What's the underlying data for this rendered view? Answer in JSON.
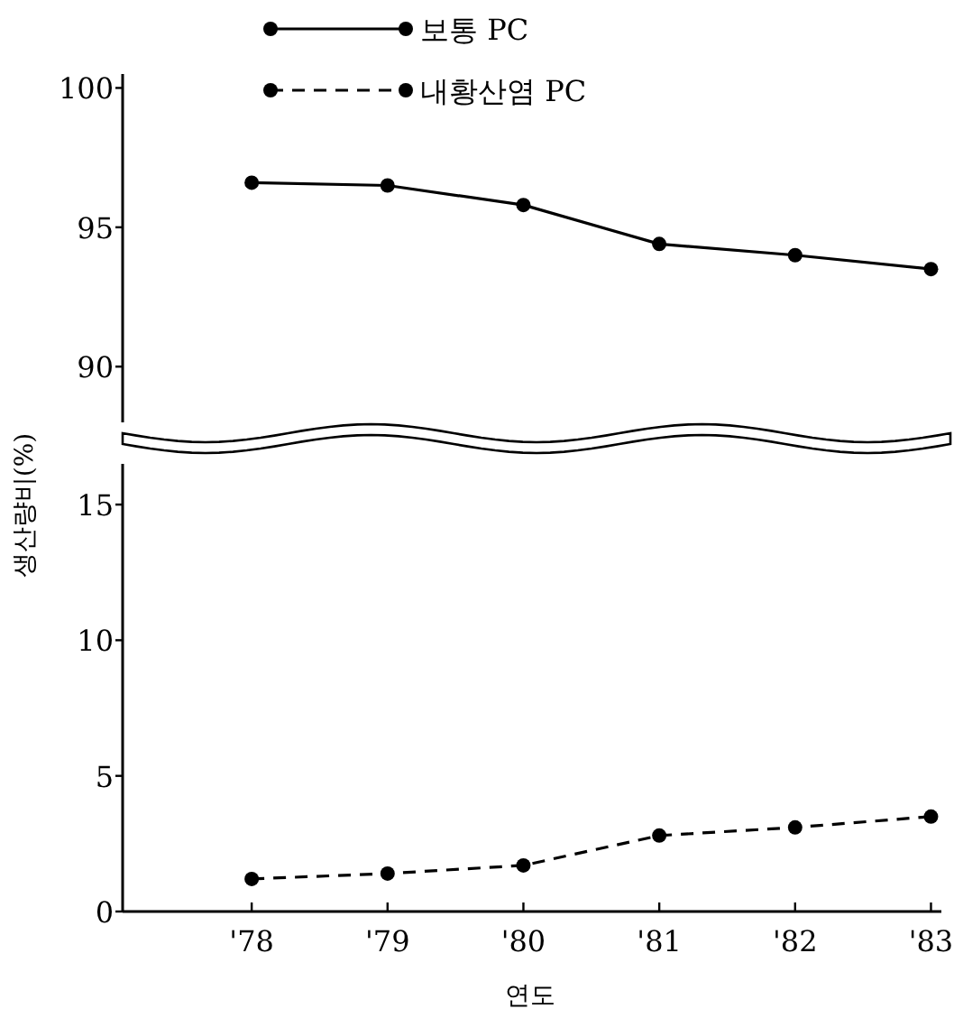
{
  "chart_data": [
    {
      "type": "line",
      "ylabel": "생산량비(%)",
      "ylim": [
        88,
        100.5
      ],
      "yticks": [
        90,
        95,
        100
      ],
      "tick_labels": "y",
      "legend": "top",
      "marker": "circle",
      "series": [
        {
          "name": "보통 PC",
          "color": "#000000",
          "line_style": "solid",
          "values": [
            96.6,
            96.5,
            95.8,
            94.4,
            94.0,
            93.5
          ]
        }
      ]
    },
    {
      "type": "line",
      "xlabel": "연도",
      "categories": [
        "'78",
        "'79",
        "'80",
        "'81",
        "'82",
        "'83"
      ],
      "ylim": [
        0,
        16.5
      ],
      "yticks": [
        0,
        5,
        10,
        15
      ],
      "legend": "top",
      "marker": "circle",
      "series": [
        {
          "name": "내황산염 PC",
          "color": "#000000",
          "line_style": "dashed",
          "values": [
            1.2,
            1.4,
            1.7,
            2.8,
            3.1,
            3.5
          ]
        }
      ]
    }
  ]
}
